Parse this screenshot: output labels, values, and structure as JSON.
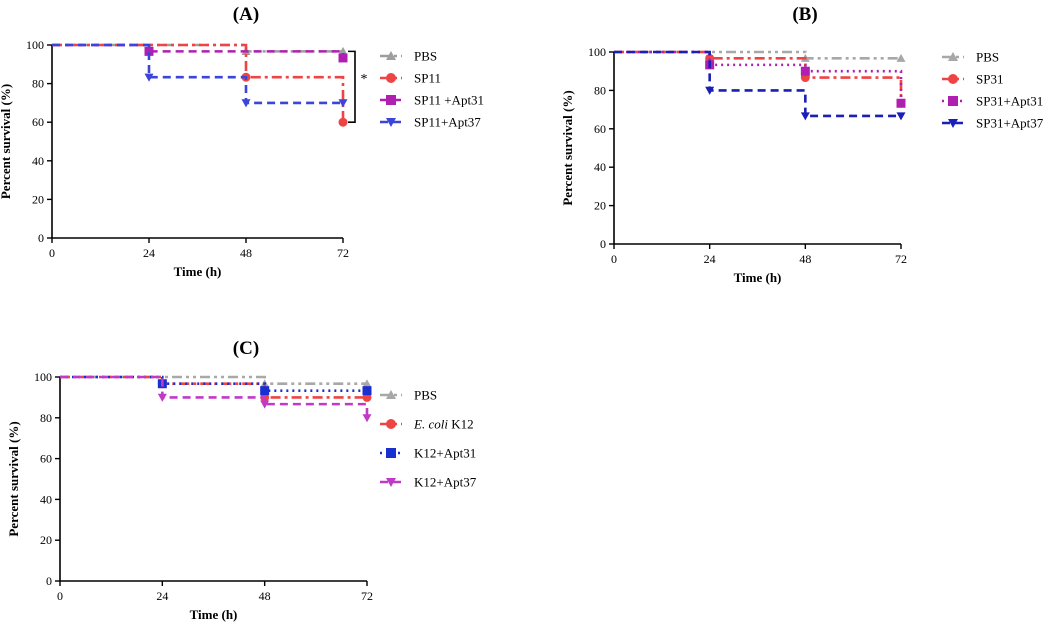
{
  "chart_data": [
    {
      "type": "line",
      "subtype": "kaplan-meier",
      "title": "(A)",
      "xlabel": "Time (h)",
      "ylabel": "Percent survival (%)",
      "xlim": [
        0,
        72
      ],
      "ylim": [
        0,
        100
      ],
      "xticks": [
        0,
        24,
        48,
        72
      ],
      "yticks": [
        0,
        20,
        40,
        60,
        80,
        100
      ],
      "xtick_labels": [
        "0",
        "24",
        "48",
        "72"
      ],
      "ytick_labels": [
        "0",
        "20",
        "40",
        "60",
        "80",
        "100"
      ],
      "significance": {
        "label": "*",
        "between": [
          "PBS",
          "SP11"
        ],
        "at_x": 72
      },
      "series": [
        {
          "name": "PBS",
          "color": "#9e9e9e",
          "dash": "dashdotdot",
          "marker": "triangle-up",
          "x": [
            0,
            24,
            48,
            72
          ],
          "y": [
            100,
            100,
            96.7,
            96.7
          ]
        },
        {
          "name": "SP11",
          "color": "#ef4444",
          "dash": "dashdot",
          "marker": "circle",
          "x": [
            0,
            24,
            48,
            72
          ],
          "y": [
            100,
            100,
            83.3,
            60
          ]
        },
        {
          "name": "SP11 +Apt31",
          "color": "#b020b0",
          "dash": "dash",
          "marker": "square",
          "x": [
            0,
            24,
            48,
            72
          ],
          "y": [
            100,
            96.7,
            96.7,
            93.3
          ]
        },
        {
          "name": "SP11+Apt37",
          "color": "#3b45d9",
          "dash": "dash",
          "marker": "triangle-down",
          "x": [
            0,
            24,
            48,
            72
          ],
          "y": [
            100,
            83.3,
            70,
            70
          ]
        }
      ]
    },
    {
      "type": "line",
      "subtype": "kaplan-meier",
      "title": "(B)",
      "xlabel": "Time (h)",
      "ylabel": "Percent survival (%)",
      "xlim": [
        0,
        72
      ],
      "ylim": [
        0,
        100
      ],
      "xticks": [
        0,
        24,
        48,
        72
      ],
      "yticks": [
        0,
        20,
        40,
        60,
        80,
        100
      ],
      "xtick_labels": [
        "0",
        "24",
        "48",
        "72"
      ],
      "ytick_labels": [
        "0",
        "20",
        "40",
        "60",
        "80",
        "100"
      ],
      "series": [
        {
          "name": "PBS",
          "color": "#a8a8a8",
          "dash": "dashdotdot",
          "marker": "triangle-up",
          "x": [
            0,
            24,
            48,
            72
          ],
          "y": [
            100,
            100,
            96.7,
            96.7
          ]
        },
        {
          "name": "SP31",
          "color": "#ef4444",
          "dash": "dashdot",
          "marker": "circle",
          "x": [
            0,
            24,
            48,
            72
          ],
          "y": [
            100,
            96.7,
            86.7,
            73.3
          ]
        },
        {
          "name": "SP31+Apt31",
          "color": "#b020b0",
          "dash": "dot",
          "marker": "square",
          "x": [
            0,
            24,
            48,
            72
          ],
          "y": [
            100,
            93.3,
            90,
            73.3
          ]
        },
        {
          "name": "SP31+Apt37",
          "color": "#1a1fb8",
          "dash": "dash",
          "marker": "triangle-down",
          "x": [
            0,
            24,
            48,
            72
          ],
          "y": [
            100,
            80,
            66.7,
            66.7
          ]
        }
      ]
    },
    {
      "type": "line",
      "subtype": "kaplan-meier",
      "title": "(C)",
      "xlabel": "Time (h)",
      "ylabel": "Percent survival (%)",
      "xlim": [
        0,
        72
      ],
      "ylim": [
        0,
        100
      ],
      "xticks": [
        0,
        24,
        48,
        72
      ],
      "yticks": [
        0,
        20,
        40,
        60,
        80,
        100
      ],
      "xtick_labels": [
        "0",
        "24",
        "48",
        "72"
      ],
      "ytick_labels": [
        "0",
        "20",
        "40",
        "60",
        "80",
        "100"
      ],
      "series": [
        {
          "name": "PBS",
          "name_italic": "",
          "name_rest": "PBS",
          "color": "#a8a8a8",
          "dash": "dashdotdot",
          "marker": "triangle-up",
          "x": [
            0,
            24,
            48,
            72
          ],
          "y": [
            100,
            100,
            96.7,
            96.7
          ]
        },
        {
          "name": "E. coli K12",
          "name_italic": "E. coli",
          "name_rest": " K12",
          "color": "#ef4444",
          "dash": "dashdot",
          "marker": "circle",
          "x": [
            0,
            24,
            48,
            72
          ],
          "y": [
            100,
            96.7,
            90,
            90
          ]
        },
        {
          "name": "K12+Apt31",
          "name_italic": "",
          "name_rest": "K12+Apt31",
          "color": "#1a2fd0",
          "dash": "dot",
          "marker": "square",
          "x": [
            0,
            24,
            48,
            72
          ],
          "y": [
            100,
            96.7,
            93.3,
            93.3
          ]
        },
        {
          "name": "K12+Apt37",
          "name_italic": "",
          "name_rest": "K12+Apt37",
          "color": "#c03ac8",
          "dash": "dash",
          "marker": "triangle-down",
          "x": [
            0,
            24,
            48,
            72
          ],
          "y": [
            100,
            90,
            86.7,
            80
          ]
        }
      ]
    }
  ]
}
